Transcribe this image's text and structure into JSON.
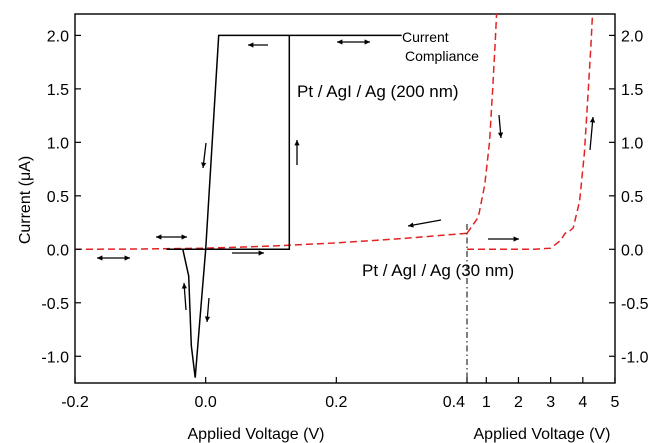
{
  "chart_data": [
    {
      "type": "line",
      "panel": "left",
      "xlabel": "Applied Voltage (V)",
      "ylabel": "Current (μA)",
      "xlim": [
        -0.2,
        0.4
      ],
      "ylim": [
        -1.25,
        2.2
      ],
      "x_ticks": [
        -0.2,
        0.0,
        0.2,
        0.4
      ],
      "x_tick_labels": [
        "-0.2",
        "0.0",
        "0.2",
        "0.4"
      ],
      "y_ticks": [
        -1.0,
        -0.5,
        0.0,
        0.5,
        1.0,
        1.5,
        2.0
      ],
      "y_tick_labels": [
        "-1.0",
        "-0.5",
        "0.0",
        "0.5",
        "1.0",
        "1.5",
        "2.0"
      ],
      "grid": false,
      "series": [
        {
          "name": "Pt / AgI / Ag (200 nm)",
          "color": "#000000",
          "style": "solid",
          "points": [
            [
              -0.06,
              0.0
            ],
            [
              0.08,
              0.0
            ],
            [
              0.128,
              0.0
            ],
            [
              0.128,
              2.0
            ],
            [
              0.3,
              2.0
            ],
            [
              0.02,
              2.0
            ],
            [
              0.0,
              0.0
            ],
            [
              -0.008,
              -0.6
            ],
            [
              -0.016,
              -1.2
            ],
            [
              -0.022,
              -0.9
            ],
            [
              -0.026,
              -0.25
            ],
            [
              -0.035,
              0.0
            ],
            [
              -0.06,
              0.0
            ]
          ]
        },
        {
          "name": "Pt / AgI / Ag (30 nm)",
          "color": "#e32222",
          "style": "dashed",
          "points": [
            [
              -0.2,
              0.0
            ],
            [
              -0.1,
              0.003
            ],
            [
              0.0,
              0.01
            ],
            [
              0.1,
              0.03
            ],
            [
              0.2,
              0.06
            ],
            [
              0.3,
              0.1
            ],
            [
              0.4,
              0.15
            ]
          ]
        }
      ]
    },
    {
      "type": "line",
      "panel": "right",
      "xlabel": "Applied Voltage (V)",
      "xlim": [
        0.4,
        5.0
      ],
      "ylim": [
        -1.25,
        2.2
      ],
      "x_ticks": [
        1,
        2,
        3,
        4,
        5
      ],
      "x_tick_labels": [
        "1",
        "2",
        "3",
        "4",
        "5"
      ],
      "y_ticks": [
        -1.0,
        -0.5,
        0.0,
        0.5,
        1.0,
        1.5,
        2.0
      ],
      "y_tick_labels": [
        "-1.0",
        "-0.5",
        "0.0",
        "0.5",
        "1.0",
        "1.5",
        "2.0"
      ],
      "grid": false,
      "series": [
        {
          "name": "Pt / AgI / Ag (30 nm) forward",
          "color": "#e32222",
          "style": "dashed",
          "points": [
            [
              0.4,
              0.0
            ],
            [
              1.5,
              0.0
            ],
            [
              2.5,
              0.0
            ],
            [
              3.0,
              0.01
            ],
            [
              3.3,
              0.08
            ],
            [
              3.45,
              0.15
            ],
            [
              3.55,
              0.16
            ],
            [
              3.7,
              0.2
            ],
            [
              3.9,
              0.45
            ],
            [
              4.05,
              0.9
            ],
            [
              4.15,
              1.4
            ],
            [
              4.25,
              1.9
            ],
            [
              4.3,
              2.2
            ]
          ]
        },
        {
          "name": "Pt / AgI / Ag (30 nm) reverse",
          "color": "#e32222",
          "style": "dashed",
          "points": [
            [
              0.4,
              0.15
            ],
            [
              0.75,
              0.3
            ],
            [
              0.95,
              0.6
            ],
            [
              1.1,
              1.0
            ],
            [
              1.2,
              1.5
            ],
            [
              1.27,
              1.9
            ],
            [
              1.32,
              2.2
            ]
          ]
        }
      ]
    }
  ],
  "annotations": {
    "compliance_line1": "Current",
    "compliance_line2": "Compliance",
    "label_200nm": "Pt / AgI / Ag (200 nm)",
    "label_30nm": "Pt / AgI / Ag (30 nm)"
  },
  "axis_texts": {
    "ylabel": "Current (μA)",
    "xlabel_left": "Applied Voltage (V)",
    "xlabel_right": "Applied Voltage (V)"
  }
}
